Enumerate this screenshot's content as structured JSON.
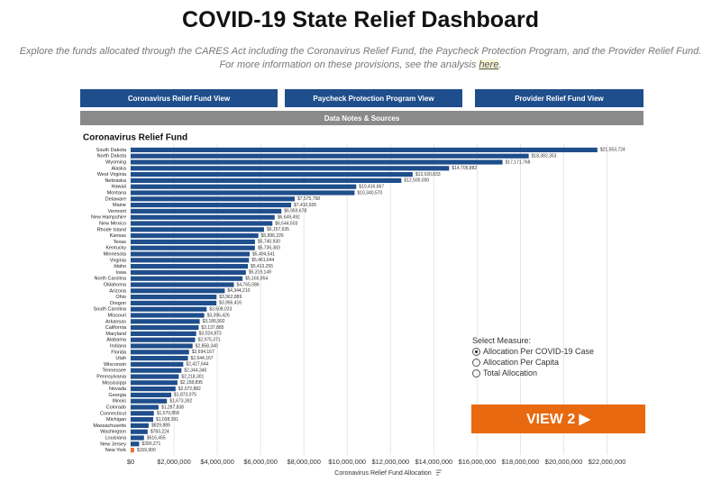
{
  "header": {
    "title": "COVID-19 State Relief Dashboard",
    "subtitle": "Explore the funds allocated through the CARES Act including the Coronavirus Relief Fund, the Paycheck Protection Program, and the Provider Relief Fund. For more information on these provisions, see the analysis",
    "link": "here",
    "period": "."
  },
  "nav": {
    "buttons": [
      "Coronavirus Relief Fund View",
      "Paycheck Protection Program View",
      "Provider Relief Fund View"
    ],
    "notes": "Data Notes & Sources"
  },
  "controls": {
    "label": "Select Measure:",
    "options": [
      "Allocation Per COVID-19 Case",
      "Allocation Per Capita",
      "Total Allocation"
    ],
    "selected": "Allocation Per COVID-19 Case",
    "view_button": "VIEW 2 ▶"
  },
  "chart_data": {
    "type": "bar",
    "orientation": "horizontal",
    "title": "Coronavirus Relief Fund",
    "x_label": "Coronavirus Relief Fund Allocation",
    "categories": [
      "South Dakota",
      "North Dakota",
      "Wyoming",
      "Alaska",
      "West Virginia",
      "Nebraska",
      "Hawaii",
      "Montana",
      "Delaware",
      "Maine",
      "Vermont",
      "New Hampshire",
      "New Mexico",
      "Rhode Island",
      "Kansas",
      "Texas",
      "Kentucky",
      "Minnesota",
      "Virginia",
      "Idaho",
      "Iowa",
      "North Carolina",
      "Oklahoma",
      "Arizona",
      "Ohio",
      "Oregon",
      "South Carolina",
      "Missouri",
      "Arkansas",
      "California",
      "Maryland",
      "Alabama",
      "Indiana",
      "Florida",
      "Utah",
      "Wisconsin",
      "Tennessee",
      "Pennsylvania",
      "Mississippi",
      "Nevada",
      "Georgia",
      "Illinois",
      "Colorado",
      "Connecticut",
      "Michigan",
      "Massachusetts",
      "Washington",
      "Louisiana",
      "New Jersey",
      "New York"
    ],
    "values": [
      21553724,
      18382353,
      17171768,
      14705882,
      13020833,
      12500000,
      10416667,
      10340570,
      7575758,
      7410926,
      6959678,
      6649492,
      6544503,
      6157635,
      5896226,
      5740930,
      5736383,
      5494541,
      5461644,
      5413255,
      5319149,
      5165954,
      4765086,
      4344210,
      3962889,
      3956416,
      3508023,
      3396426,
      3186992,
      3137885,
      3024873,
      2975371,
      2858340,
      2694167,
      2644167,
      2427644,
      2344340,
      2218301,
      2158895,
      2072882,
      1873075,
      1673392,
      1287838,
      1070858,
      1038391,
      829889,
      783224,
      616455,
      390271,
      159900
    ],
    "value_labels": [
      "$21,553,724",
      "$18,382,353",
      "$17,171,768",
      "$14,705,882",
      "$13,020,833",
      "$12,500,000",
      "$10,416,667",
      "$10,340,570",
      "$7,575,758",
      "$7,410,926",
      "$6,959,678",
      "$6,649,492",
      "$6,544,503",
      "$6,157,635",
      "$5,896,226",
      "$5,740,930",
      "$5,736,383",
      "$5,494,541",
      "$5,461,644",
      "$5,413,255",
      "$5,319,149",
      "$5,165,954",
      "$4,765,086",
      "$4,344,210",
      "$3,962,889",
      "$3,956,416",
      "$3,508,023",
      "$3,396,426",
      "$3,186,992",
      "$3,137,885",
      "$3,024,873",
      "$2,975,371",
      "$2,858,340",
      "$2,694,167",
      "$2,644,167",
      "$2,427,644",
      "$2,344,340",
      "$2,218,301",
      "$2,158,895",
      "$2,072,882",
      "$1,873,075",
      "$1,673,392",
      "$1,287,838",
      "$1,070,858",
      "$1,038,391",
      "$829,889",
      "$783,224",
      "$616,455",
      "$390,271",
      "$159,900"
    ],
    "color": "#1f4e8c",
    "highlight_color": "#e8702a",
    "highlight": "New York",
    "xlim": [
      0,
      22600000
    ],
    "xticks": [
      {
        "value": 0,
        "label": "$0"
      },
      {
        "value": 2000000,
        "label": "$2,000,000"
      },
      {
        "value": 4000000,
        "label": "$4,000,000"
      },
      {
        "value": 6000000,
        "label": "$6,000,000"
      },
      {
        "value": 8000000,
        "label": "$8,000,000"
      },
      {
        "value": 10000000,
        "label": "$10,000,000"
      },
      {
        "value": 12000000,
        "label": "$12,000,000"
      },
      {
        "value": 14000000,
        "label": "$14,000,000"
      },
      {
        "value": 16000000,
        "label": "$16,000,000"
      },
      {
        "value": 18000000,
        "label": "$18,000,000"
      },
      {
        "value": 20000000,
        "label": "$20,000,000"
      },
      {
        "value": 22000000,
        "label": "$22,000,000"
      }
    ],
    "grid": true
  }
}
